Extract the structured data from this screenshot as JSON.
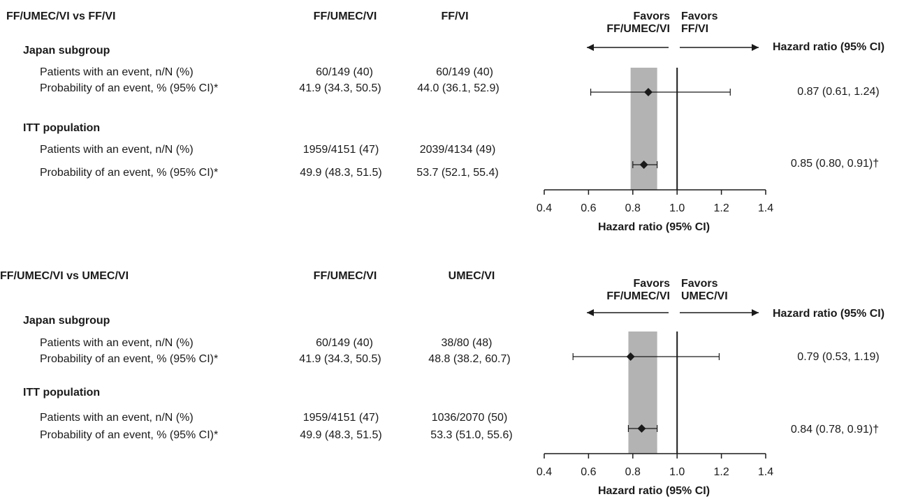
{
  "panels": [
    {
      "title": "FF/UMEC/VI vs FF/VI",
      "col1": "FF/UMEC/VI",
      "col2": "FF/VI",
      "favors_left": [
        "Favors",
        "FF/UMEC/VI"
      ],
      "favors_right": [
        "Favors",
        "FF/VI"
      ],
      "hr_header": "Hazard ratio (95% CI)",
      "axis_label": "Hazard ratio (95% CI)",
      "groups": [
        {
          "name": "Japan subgroup",
          "row1_label": "Patients with an event, n/N (%)",
          "row1_c1": "60/149 (40)",
          "row1_c2": "60/149 (40)",
          "row2_label": "Probability of an event, % (95% CI)*",
          "row2_c1": "41.9 (34.3, 50.5)",
          "row2_c2": "44.0 (36.1, 52.9)",
          "hr_text": "0.87 (0.61, 1.24)"
        },
        {
          "name": "ITT population",
          "row1_label": "Patients with an event, n/N (%)",
          "row1_c1": "1959/4151 (47)",
          "row1_c2": "2039/4134 (49)",
          "row2_label": "Probability of an event, % (95% CI)*",
          "row2_c1": "49.9 (48.3, 51.5)",
          "row2_c2": "53.7 (52.1, 55.4)",
          "hr_text": "0.85 (0.80, 0.91)†"
        }
      ]
    },
    {
      "title": "FF/UMEC/VI vs UMEC/VI",
      "col1": "FF/UMEC/VI",
      "col2": "UMEC/VI",
      "favors_left": [
        "Favors",
        "FF/UMEC/VI"
      ],
      "favors_right": [
        "Favors",
        "UMEC/VI"
      ],
      "hr_header": "Hazard ratio (95% CI)",
      "axis_label": "Hazard ratio (95% CI)",
      "groups": [
        {
          "name": "Japan subgroup",
          "row1_label": "Patients with an event, n/N (%)",
          "row1_c1": "60/149 (40)",
          "row1_c2": "38/80 (48)",
          "row2_label": "Probability of an event, % (95% CI)*",
          "row2_c1": "41.9 (34.3, 50.5)",
          "row2_c2": "48.8 (38.2, 60.7)",
          "hr_text": "0.79 (0.53, 1.19)"
        },
        {
          "name": "ITT population",
          "row1_label": "Patients with an event, n/N (%)",
          "row1_c1": "1959/4151 (47)",
          "row1_c2": "1036/2070 (50)",
          "row2_label": "Probability of an event, % (95% CI)*",
          "row2_c1": "49.9 (48.3, 51.5)",
          "row2_c2": "53.3 (51.0, 55.6)",
          "hr_text": "0.84 (0.78, 0.91)†"
        }
      ]
    }
  ],
  "chart_data": [
    {
      "type": "forest",
      "xlabel": "Hazard ratio (95% CI)",
      "xlim": [
        0.4,
        1.4
      ],
      "ticks": [
        "0.4",
        "0.6",
        "0.8",
        "1.0",
        "1.2",
        "1.4"
      ],
      "reference_line": 1.0,
      "shaded_band": [
        0.79,
        0.91
      ],
      "series": [
        {
          "name": "Japan subgroup",
          "hr": 0.87,
          "lower": 0.61,
          "upper": 1.24
        },
        {
          "name": "ITT population",
          "hr": 0.85,
          "lower": 0.8,
          "upper": 0.91
        }
      ],
      "colors": {
        "band": "#b3b3b3",
        "line": "#1a1a1a"
      }
    },
    {
      "type": "forest",
      "xlabel": "Hazard ratio (95% CI)",
      "xlim": [
        0.4,
        1.4
      ],
      "ticks": [
        "0.4",
        "0.6",
        "0.8",
        "1.0",
        "1.2",
        "1.4"
      ],
      "reference_line": 1.0,
      "shaded_band": [
        0.78,
        0.91
      ],
      "series": [
        {
          "name": "Japan subgroup",
          "hr": 0.79,
          "lower": 0.53,
          "upper": 1.19
        },
        {
          "name": "ITT population",
          "hr": 0.84,
          "lower": 0.78,
          "upper": 0.91
        }
      ],
      "colors": {
        "band": "#b3b3b3",
        "line": "#1a1a1a"
      }
    }
  ]
}
